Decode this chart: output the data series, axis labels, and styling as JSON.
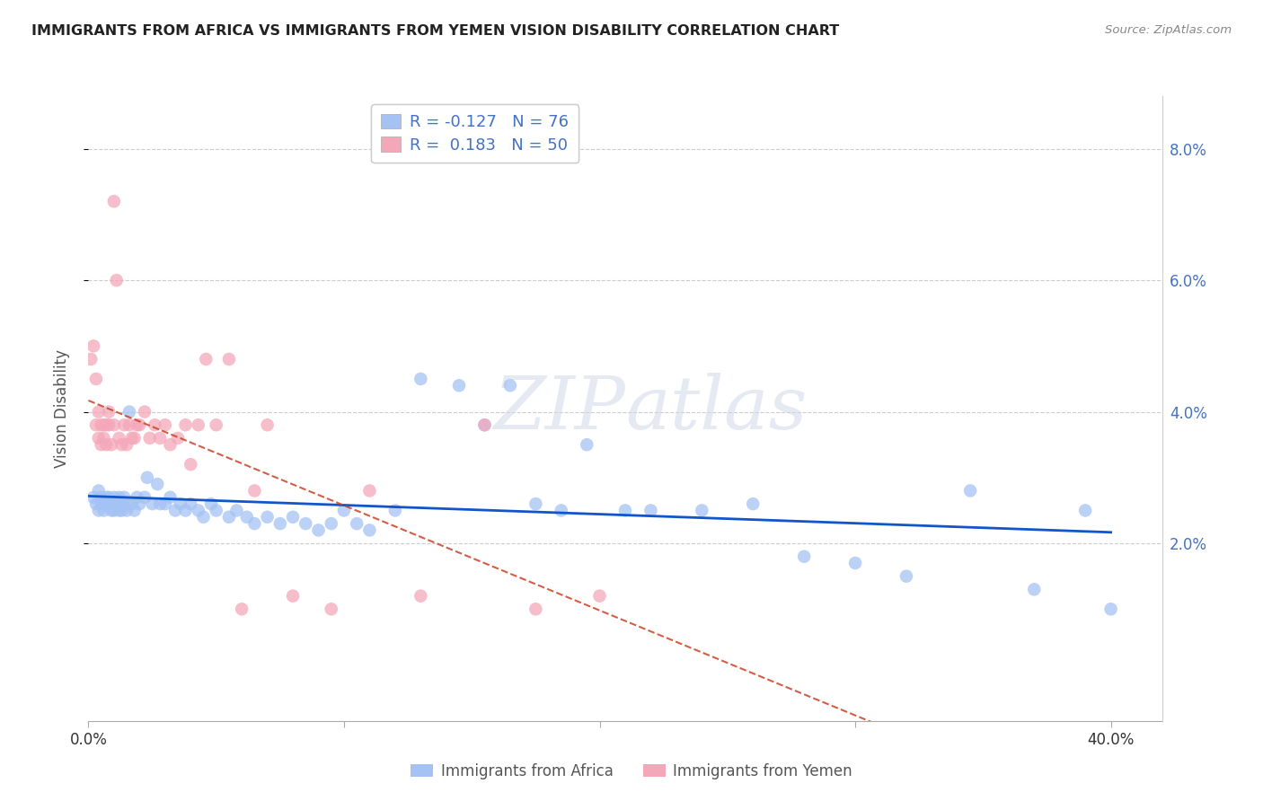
{
  "title": "IMMIGRANTS FROM AFRICA VS IMMIGRANTS FROM YEMEN VISION DISABILITY CORRELATION CHART",
  "source": "Source: ZipAtlas.com",
  "ylabel": "Vision Disability",
  "xlim": [
    0.0,
    0.42
  ],
  "ylim": [
    -0.007,
    0.088
  ],
  "legend_r_africa": "-0.127",
  "legend_n_africa": "76",
  "legend_r_yemen": "0.183",
  "legend_n_yemen": "50",
  "color_africa": "#a4c2f4",
  "color_yemen": "#f4a7b9",
  "color_africa_line": "#1155cc",
  "color_yemen_line": "#cc4125",
  "watermark": "ZIPAtlas",
  "africa_x": [
    0.002,
    0.003,
    0.004,
    0.004,
    0.005,
    0.005,
    0.006,
    0.006,
    0.007,
    0.007,
    0.008,
    0.008,
    0.009,
    0.009,
    0.01,
    0.01,
    0.011,
    0.012,
    0.012,
    0.013,
    0.013,
    0.014,
    0.015,
    0.015,
    0.016,
    0.017,
    0.018,
    0.019,
    0.02,
    0.022,
    0.023,
    0.025,
    0.027,
    0.028,
    0.03,
    0.032,
    0.034,
    0.036,
    0.038,
    0.04,
    0.043,
    0.045,
    0.048,
    0.05,
    0.055,
    0.058,
    0.062,
    0.065,
    0.07,
    0.075,
    0.08,
    0.085,
    0.09,
    0.095,
    0.1,
    0.105,
    0.11,
    0.12,
    0.13,
    0.145,
    0.155,
    0.165,
    0.175,
    0.185,
    0.195,
    0.21,
    0.22,
    0.24,
    0.26,
    0.28,
    0.3,
    0.32,
    0.345,
    0.37,
    0.39,
    0.4
  ],
  "africa_y": [
    0.027,
    0.026,
    0.028,
    0.025,
    0.027,
    0.026,
    0.026,
    0.025,
    0.027,
    0.026,
    0.027,
    0.026,
    0.026,
    0.025,
    0.027,
    0.025,
    0.026,
    0.027,
    0.025,
    0.026,
    0.025,
    0.027,
    0.025,
    0.026,
    0.04,
    0.026,
    0.025,
    0.027,
    0.026,
    0.027,
    0.03,
    0.026,
    0.029,
    0.026,
    0.026,
    0.027,
    0.025,
    0.026,
    0.025,
    0.026,
    0.025,
    0.024,
    0.026,
    0.025,
    0.024,
    0.025,
    0.024,
    0.023,
    0.024,
    0.023,
    0.024,
    0.023,
    0.022,
    0.023,
    0.025,
    0.023,
    0.022,
    0.025,
    0.045,
    0.044,
    0.038,
    0.044,
    0.026,
    0.025,
    0.035,
    0.025,
    0.025,
    0.025,
    0.026,
    0.018,
    0.017,
    0.015,
    0.028,
    0.013,
    0.025,
    0.01
  ],
  "yemen_x": [
    0.001,
    0.002,
    0.003,
    0.003,
    0.004,
    0.004,
    0.005,
    0.005,
    0.006,
    0.006,
    0.007,
    0.007,
    0.008,
    0.008,
    0.009,
    0.01,
    0.01,
    0.011,
    0.012,
    0.013,
    0.014,
    0.015,
    0.016,
    0.017,
    0.018,
    0.019,
    0.02,
    0.022,
    0.024,
    0.026,
    0.028,
    0.03,
    0.032,
    0.035,
    0.038,
    0.04,
    0.043,
    0.046,
    0.05,
    0.055,
    0.06,
    0.065,
    0.07,
    0.08,
    0.095,
    0.11,
    0.13,
    0.155,
    0.175,
    0.2
  ],
  "yemen_y": [
    0.048,
    0.05,
    0.045,
    0.038,
    0.04,
    0.036,
    0.038,
    0.035,
    0.038,
    0.036,
    0.035,
    0.038,
    0.038,
    0.04,
    0.035,
    0.072,
    0.038,
    0.06,
    0.036,
    0.035,
    0.038,
    0.035,
    0.038,
    0.036,
    0.036,
    0.038,
    0.038,
    0.04,
    0.036,
    0.038,
    0.036,
    0.038,
    0.035,
    0.036,
    0.038,
    0.032,
    0.038,
    0.048,
    0.038,
    0.048,
    0.01,
    0.028,
    0.038,
    0.012,
    0.01,
    0.028,
    0.012,
    0.038,
    0.01,
    0.012
  ]
}
